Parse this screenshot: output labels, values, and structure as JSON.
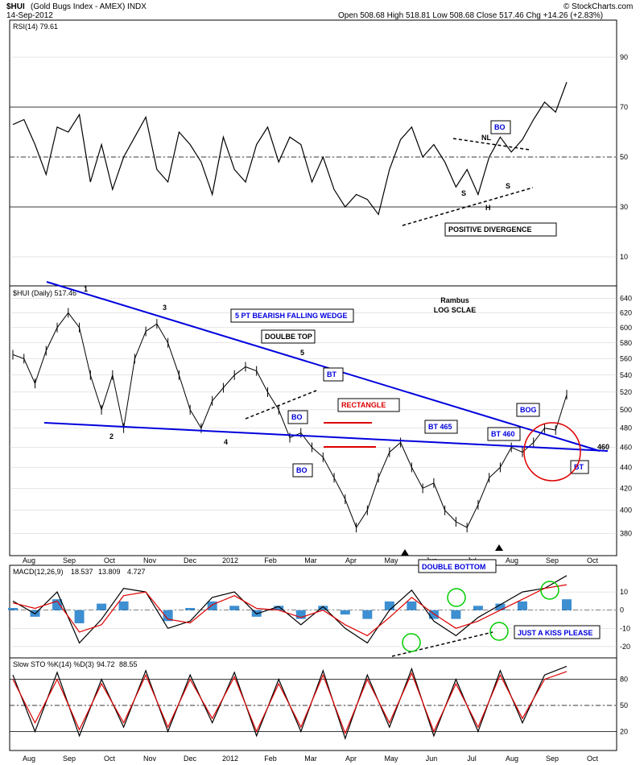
{
  "header": {
    "symbol": "$HUI",
    "name": "(Gold Bugs Index - AMEX) INDX",
    "date": "14-Sep-2012",
    "ohlc": "Open 508.68  High 518.81  Low 508.68  Close 517.46  Chg +14.26 (+2.83%)",
    "credit": "© StockCharts.com"
  },
  "colors": {
    "blue": "#0000dd",
    "red": "#dd0000",
    "green": "#00cc00",
    "macd_hist": "#3d8fd1"
  },
  "chart_data": [
    {
      "panel": "rsi",
      "type": "line",
      "label": "RSI(14) 79.61",
      "ylim": [
        0,
        100
      ],
      "yticks": [
        "90",
        "70",
        "50",
        "30",
        "10"
      ],
      "ytick_values": [
        90,
        70,
        50,
        30,
        10
      ],
      "levels": [
        70,
        50,
        30
      ],
      "x": [
        0,
        0.02,
        0.04,
        0.06,
        0.08,
        0.1,
        0.12,
        0.14,
        0.16,
        0.18,
        0.2,
        0.22,
        0.24,
        0.26,
        0.28,
        0.3,
        0.32,
        0.34,
        0.36,
        0.38,
        0.4,
        0.42,
        0.44,
        0.46,
        0.48,
        0.5,
        0.52,
        0.54,
        0.56,
        0.58,
        0.6,
        0.62,
        0.64,
        0.66,
        0.68,
        0.7,
        0.72,
        0.74,
        0.76,
        0.78,
        0.8,
        0.82,
        0.84,
        0.86,
        0.88,
        0.9,
        0.92,
        0.94,
        0.96,
        0.98,
        1
      ],
      "values": [
        63,
        65,
        55,
        43,
        62,
        60,
        67,
        40,
        55,
        37,
        50,
        58,
        66,
        45,
        40,
        60,
        55,
        48,
        35,
        58,
        45,
        40,
        55,
        62,
        48,
        58,
        55,
        40,
        50,
        37,
        30,
        35,
        33,
        27,
        45,
        57,
        62,
        50,
        55,
        48,
        38,
        45,
        35,
        50,
        58,
        52,
        57,
        65,
        72,
        68,
        80
      ]
    },
    {
      "panel": "price",
      "type": "line",
      "label": "$HUI (Daily) 517.46",
      "scale": "log",
      "ylim": [
        365,
        650
      ],
      "yticks": [
        "640",
        "620",
        "600",
        "580",
        "560",
        "540",
        "520",
        "500",
        "480",
        "460",
        "440",
        "420",
        "400",
        "380"
      ],
      "ytick_values": [
        640,
        620,
        600,
        580,
        560,
        540,
        520,
        500,
        480,
        460,
        440,
        420,
        400,
        380
      ],
      "x_months": [
        "Aug",
        "Sep",
        "Oct",
        "Nov",
        "Dec",
        "2012",
        "Feb",
        "Mar",
        "Apr",
        "May",
        "Jun",
        "Jul",
        "Aug",
        "Sep",
        "Oct"
      ],
      "x": [
        0,
        0.02,
        0.04,
        0.06,
        0.08,
        0.1,
        0.12,
        0.14,
        0.16,
        0.18,
        0.2,
        0.22,
        0.24,
        0.26,
        0.28,
        0.3,
        0.32,
        0.34,
        0.36,
        0.38,
        0.4,
        0.42,
        0.44,
        0.46,
        0.48,
        0.5,
        0.52,
        0.54,
        0.56,
        0.58,
        0.6,
        0.62,
        0.64,
        0.66,
        0.68,
        0.7,
        0.72,
        0.74,
        0.76,
        0.78,
        0.8,
        0.82,
        0.84,
        0.86,
        0.88,
        0.9,
        0.92,
        0.94,
        0.96,
        0.98,
        1
      ],
      "values": [
        565,
        560,
        530,
        570,
        600,
        620,
        600,
        540,
        500,
        540,
        480,
        560,
        595,
        605,
        580,
        540,
        500,
        480,
        510,
        525,
        540,
        550,
        545,
        520,
        500,
        470,
        475,
        460,
        450,
        430,
        410,
        385,
        400,
        430,
        455,
        465,
        440,
        420,
        425,
        400,
        390,
        385,
        405,
        430,
        440,
        460,
        455,
        465,
        480,
        478,
        517
      ],
      "annotations": [
        "1",
        "2",
        "3",
        "4",
        "5",
        "5 PT BEARISH FALLING WEDGE",
        "DOULBE TOP",
        "BT",
        "BO",
        "RECTANGLE",
        "BO",
        "BT 465",
        "BT 460",
        "BOG",
        "BT",
        "460",
        "DOUBLE BOTTOM",
        "Rambus",
        "LOG SCLAE"
      ]
    },
    {
      "panel": "macd",
      "type": "line",
      "label": "MACD(12,26,9)",
      "values_label": [
        "18.537",
        "13.809",
        "4.727"
      ],
      "ylim": [
        -24,
        22
      ],
      "yticks": [
        "10",
        "0",
        "-10",
        "-20"
      ],
      "ytick_values": [
        10,
        0,
        -10,
        -20
      ],
      "x": [
        0,
        0.04,
        0.08,
        0.12,
        0.16,
        0.2,
        0.24,
        0.28,
        0.32,
        0.36,
        0.4,
        0.44,
        0.48,
        0.52,
        0.56,
        0.6,
        0.64,
        0.68,
        0.72,
        0.76,
        0.8,
        0.84,
        0.88,
        0.92,
        0.96,
        1
      ],
      "series": [
        {
          "name": "MACD",
          "values": [
            5,
            -2,
            10,
            -18,
            -5,
            12,
            10,
            -10,
            -6,
            7,
            10,
            -2,
            2,
            -8,
            2,
            -10,
            -18,
            0,
            11,
            -6,
            -14,
            -4,
            3,
            10,
            12,
            19
          ]
        },
        {
          "name": "Signal",
          "values": [
            4,
            1,
            5,
            -12,
            -8,
            8,
            10,
            -5,
            -7,
            3,
            8,
            1,
            0,
            -4,
            0,
            -8,
            -14,
            -4,
            7,
            -2,
            -10,
            -6,
            0,
            6,
            12,
            14
          ]
        }
      ],
      "annotation": "JUST A KISS PLEASE"
    },
    {
      "panel": "sto",
      "type": "line",
      "label": "Slow STO %K(14) %D(3)",
      "values_label": [
        "94.72",
        "88.55"
      ],
      "ylim": [
        0,
        100
      ],
      "yticks": [
        "80",
        "50",
        "20"
      ],
      "ytick_values": [
        80,
        50,
        20
      ],
      "x": [
        0,
        0.04,
        0.08,
        0.12,
        0.16,
        0.2,
        0.24,
        0.28,
        0.32,
        0.36,
        0.4,
        0.44,
        0.48,
        0.52,
        0.56,
        0.6,
        0.64,
        0.68,
        0.72,
        0.76,
        0.8,
        0.84,
        0.88,
        0.92,
        0.96,
        1
      ],
      "series": [
        {
          "name": "%K",
          "values": [
            85,
            20,
            88,
            15,
            80,
            25,
            90,
            20,
            85,
            30,
            88,
            15,
            80,
            20,
            90,
            12,
            85,
            25,
            92,
            15,
            80,
            20,
            90,
            30,
            85,
            95
          ]
        },
        {
          "name": "%D",
          "values": [
            80,
            30,
            80,
            22,
            75,
            30,
            85,
            25,
            80,
            35,
            83,
            20,
            75,
            25,
            85,
            18,
            80,
            30,
            87,
            20,
            75,
            25,
            85,
            35,
            80,
            89
          ]
        }
      ]
    }
  ]
}
